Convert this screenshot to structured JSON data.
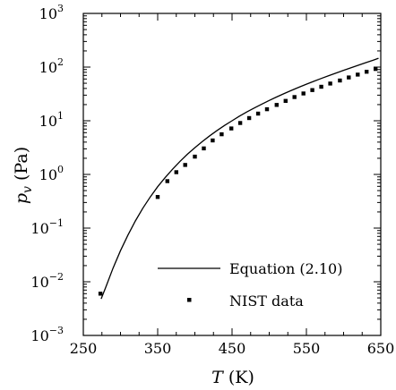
{
  "chart_data": {
    "type": "line",
    "title": "",
    "xlabel": {
      "symbol": "T",
      "unit": " (K)"
    },
    "ylabel": {
      "symbol": "p",
      "subscript": "v",
      "unit": " (Pa)"
    },
    "xlim": [
      250,
      650
    ],
    "ylim": [
      0.001,
      1000
    ],
    "yscale": "log",
    "grid": false,
    "legend_position": "bottom-right",
    "x_ticks": [
      250,
      350,
      450,
      550,
      650
    ],
    "y_ticks": [
      {
        "base": "10",
        "exp": "−3",
        "value": 0.001
      },
      {
        "base": "10",
        "exp": "−2",
        "value": 0.01
      },
      {
        "base": "10",
        "exp": "−1",
        "value": 0.1
      },
      {
        "base": "10",
        "exp": "0",
        "value": 1
      },
      {
        "base": "10",
        "exp": "1",
        "value": 10
      },
      {
        "base": "10",
        "exp": "2",
        "value": 100
      },
      {
        "base": "10",
        "exp": "3",
        "value": 1000
      }
    ],
    "series": [
      {
        "name": "Equation (2.10)",
        "style": "line",
        "x": [
          274,
          280,
          290,
          300,
          310,
          320,
          330,
          340,
          350,
          360,
          370,
          380,
          390,
          400,
          410,
          420,
          430,
          440,
          450,
          460,
          470,
          480,
          490,
          500,
          510,
          520,
          530,
          540,
          550,
          560,
          570,
          580,
          590,
          600,
          610,
          620,
          630,
          640,
          647
        ],
        "y": [
          0.0048,
          0.0078,
          0.018,
          0.038,
          0.074,
          0.136,
          0.234,
          0.38,
          0.59,
          0.87,
          1.25,
          1.75,
          2.38,
          3.15,
          4.1,
          5.25,
          6.6,
          8.2,
          10.0,
          12.2,
          14.6,
          17.3,
          20.4,
          23.9,
          27.8,
          32.1,
          36.9,
          42.2,
          48.0,
          54.4,
          61.5,
          69.2,
          77.7,
          87.0,
          97.2,
          108.5,
          121.0,
          135.0,
          146.0
        ]
      },
      {
        "name": "NIST data",
        "style": "marker",
        "x": [
          273,
          350,
          363,
          375,
          387,
          400,
          412,
          424,
          436,
          449,
          461,
          473,
          485,
          497,
          510,
          522,
          534,
          546,
          558,
          570,
          582,
          595,
          607,
          619,
          631,
          643
        ],
        "y": [
          0.006,
          0.38,
          0.75,
          1.1,
          1.5,
          2.15,
          3.05,
          4.3,
          5.6,
          7.2,
          9.1,
          11.2,
          13.6,
          16.4,
          19.7,
          23.4,
          27.6,
          32.2,
          37.3,
          43.0,
          49.3,
          56.3,
          64.0,
          72.5,
          81.9,
          92.2
        ]
      }
    ]
  }
}
